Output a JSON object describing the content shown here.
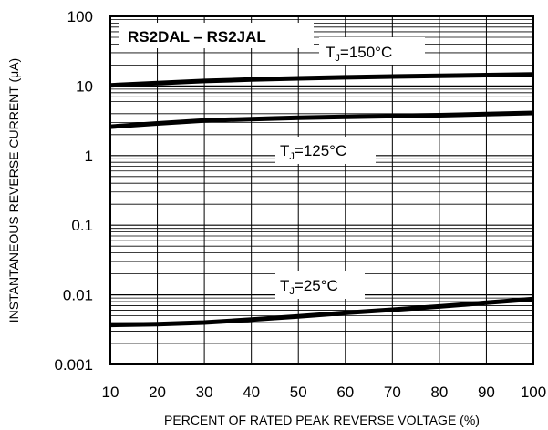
{
  "chart_data": {
    "type": "line",
    "y_scale": "log",
    "title": "RS2DAL – RS2JAL",
    "xlabel": "PERCENT OF RATED PEAK REVERSE VOLTAGE (%)",
    "ylabel": "INSTANTANEOUS REVERSE CURRENT (μA)",
    "xlim": [
      10,
      100
    ],
    "ylim": [
      0.001,
      100
    ],
    "grid": true,
    "x_ticks": [
      "10",
      "20",
      "30",
      "40",
      "50",
      "60",
      "70",
      "80",
      "90",
      "100"
    ],
    "y_ticks": [
      "0.001",
      "0.01",
      "0.1",
      "1",
      "10",
      "100"
    ],
    "series": [
      {
        "name_main": "T",
        "name_sub": "J",
        "name_rest": "=150°C",
        "x": [
          10,
          20,
          30,
          40,
          50,
          60,
          70,
          80,
          90,
          100
        ],
        "y": [
          10.2,
          11.0,
          11.8,
          12.4,
          12.9,
          13.3,
          13.7,
          14.0,
          14.3,
          14.6
        ]
      },
      {
        "name_main": "T",
        "name_sub": "J",
        "name_rest": "=125°C",
        "x": [
          10,
          20,
          30,
          40,
          50,
          60,
          70,
          80,
          90,
          100
        ],
        "y": [
          2.6,
          2.9,
          3.2,
          3.35,
          3.5,
          3.6,
          3.7,
          3.8,
          3.95,
          4.1
        ]
      },
      {
        "name_main": "T",
        "name_sub": "J",
        "name_rest": "=25°C",
        "x": [
          10,
          20,
          30,
          40,
          50,
          60,
          70,
          80,
          90,
          100
        ],
        "y": [
          0.0037,
          0.0038,
          0.004,
          0.0044,
          0.0049,
          0.0055,
          0.0061,
          0.0068,
          0.0077,
          0.0087
        ]
      }
    ]
  }
}
